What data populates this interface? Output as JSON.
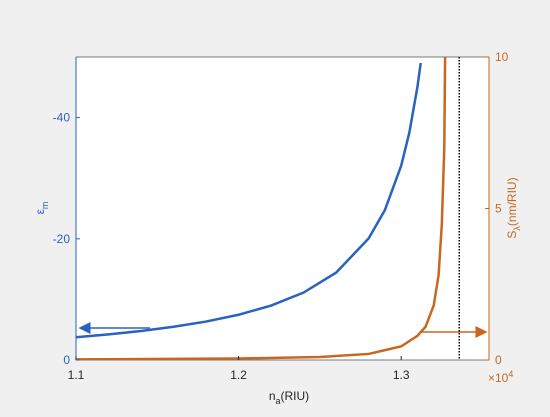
{
  "chart_data": {
    "type": "line",
    "xlabel": [
      "n",
      "a",
      "(RIU)"
    ],
    "ylabel": [
      "ε",
      "m"
    ],
    "y2label": [
      "S",
      "λ",
      "(nm/RIU)"
    ],
    "y2_multiplier": [
      "×10",
      "4"
    ],
    "xlim": [
      1.1,
      1.354
    ],
    "xticks": [
      1.1,
      1.2,
      1.3
    ],
    "ylim": [
      0,
      -50
    ],
    "yticks": [
      0,
      -20,
      -40
    ],
    "y2lim": [
      0,
      10
    ],
    "y2ticks": [
      0,
      5,
      10
    ],
    "asymptote_x": 1.3357,
    "series": [
      {
        "color": "#2a62c0",
        "x": [
          1.1,
          1.12,
          1.14,
          1.16,
          1.18,
          1.2,
          1.22,
          1.24,
          1.26,
          1.28,
          1.29,
          1.3,
          1.305,
          1.31,
          1.312
        ],
        "values": [
          -3.76,
          -4.23,
          -4.79,
          -5.48,
          -6.34,
          -7.47,
          -8.98,
          -11.13,
          -14.42,
          -20.07,
          -24.76,
          -32.07,
          -37.51,
          -45.09,
          -49.01
        ]
      },
      {
        "color": "#c8671e",
        "axis": "y2",
        "x": [
          1.1,
          1.2,
          1.25,
          1.28,
          1.3,
          1.31,
          1.315,
          1.32,
          1.323,
          1.325,
          1.3265,
          1.327
        ],
        "values": [
          0.02,
          0.05,
          0.1,
          0.2,
          0.45,
          0.8,
          1.1,
          1.8,
          2.8,
          4.5,
          7,
          10
        ]
      }
    ]
  }
}
